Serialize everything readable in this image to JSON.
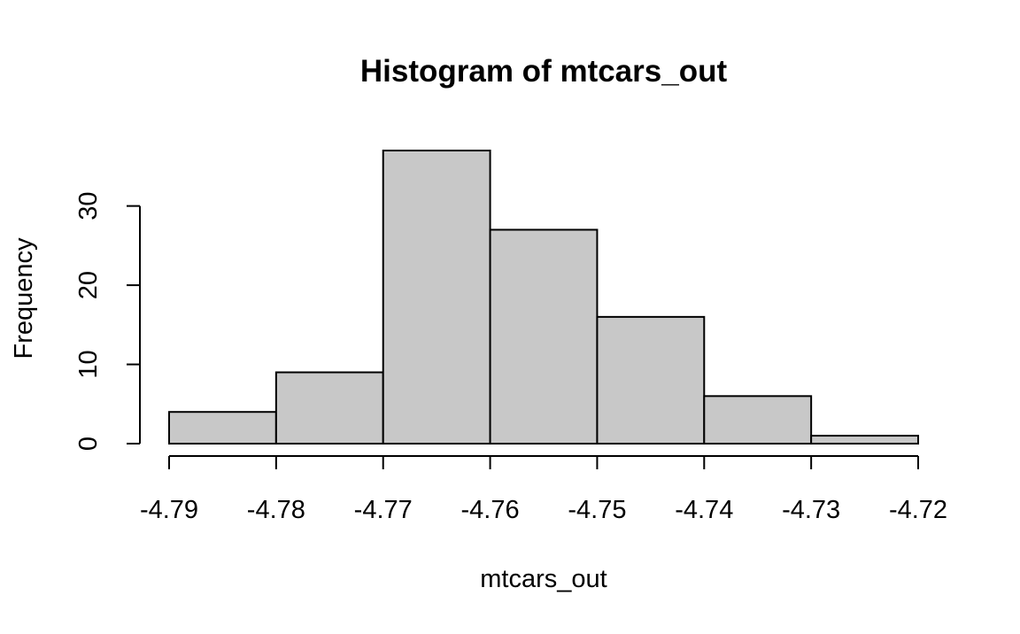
{
  "chart_data": {
    "type": "bar",
    "title": "Histogram of mtcars_out",
    "xlabel": "mtcars_out",
    "ylabel": "Frequency",
    "bins": [
      {
        "from": -4.79,
        "to": -4.78,
        "count": 4
      },
      {
        "from": -4.78,
        "to": -4.77,
        "count": 9
      },
      {
        "from": -4.77,
        "to": -4.76,
        "count": 37
      },
      {
        "from": -4.76,
        "to": -4.75,
        "count": 27
      },
      {
        "from": -4.75,
        "to": -4.74,
        "count": 16
      },
      {
        "from": -4.74,
        "to": -4.73,
        "count": 6
      },
      {
        "from": -4.73,
        "to": -4.72,
        "count": 1
      }
    ],
    "x_ticks": [
      "-4.79",
      "-4.78",
      "-4.77",
      "-4.76",
      "-4.75",
      "-4.74",
      "-4.73",
      "-4.72"
    ],
    "y_ticks": [
      "0",
      "10",
      "20",
      "30"
    ],
    "xlim": [
      -4.79,
      -4.72
    ],
    "ylim": [
      0,
      37
    ],
    "bar_color": "#c8c8c8",
    "grid": false,
    "legend": "none"
  }
}
